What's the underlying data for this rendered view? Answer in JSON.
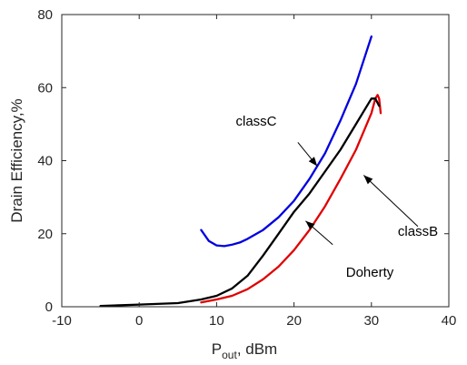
{
  "chart_data": {
    "type": "line",
    "xlabel": "P",
    "xlabel_sub": "out",
    "xlabel_suffix": ", dBm",
    "ylabel": "Drain Efficiency,%",
    "xlim": [
      -10,
      40
    ],
    "ylim": [
      0,
      80
    ],
    "xticks": [
      -10,
      0,
      10,
      20,
      30,
      40
    ],
    "yticks": [
      0,
      20,
      40,
      60,
      80
    ],
    "grid": false,
    "colors": {
      "axis": "#262626",
      "classC": "#0000e0",
      "classB": "#e00000",
      "Doherty": "#000000"
    },
    "series": [
      {
        "name": "classC",
        "color": "#0000e0",
        "x": [
          8,
          9,
          10,
          11,
          12,
          13,
          14,
          16,
          18,
          20,
          22,
          24,
          26,
          28,
          30
        ],
        "y": [
          21,
          18,
          16.8,
          16.6,
          17,
          17.6,
          18.6,
          21,
          24.5,
          29,
          35,
          42,
          51,
          61,
          74
        ]
      },
      {
        "name": "classB",
        "color": "#e00000",
        "x": [
          8,
          10,
          12,
          14,
          16,
          18,
          20,
          22,
          24,
          26,
          28,
          29,
          30,
          30.5,
          30.8,
          31,
          31.2
        ],
        "y": [
          1.2,
          2,
          3,
          4.8,
          7.5,
          11,
          15.5,
          21,
          27.5,
          35,
          43,
          48,
          53,
          57,
          58,
          57,
          53
        ]
      },
      {
        "name": "Doherty",
        "color": "#000000",
        "x": [
          -5,
          0,
          5,
          8,
          10,
          12,
          14,
          16,
          18,
          20,
          22,
          24,
          26,
          28,
          29,
          30,
          30.5,
          31
        ],
        "y": [
          0.2,
          0.6,
          1,
          2,
          3,
          5,
          8.5,
          14,
          20,
          26,
          31,
          37,
          43,
          50,
          53.5,
          57,
          57,
          55
        ]
      }
    ],
    "annotations": [
      {
        "text": "classC",
        "arrow_from": [
          20.5,
          45
        ],
        "arrow_to": [
          23,
          38.5
        ]
      },
      {
        "text": "classB",
        "arrow_from": [
          36,
          22
        ],
        "arrow_to": [
          29,
          36
        ]
      },
      {
        "text": "Doherty",
        "arrow_from": [
          25,
          17
        ],
        "arrow_to": [
          21.5,
          23.5
        ]
      }
    ]
  }
}
